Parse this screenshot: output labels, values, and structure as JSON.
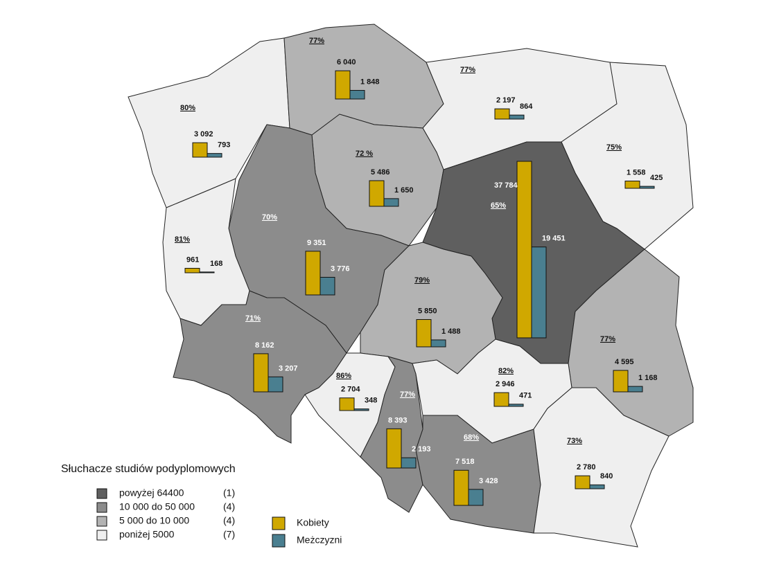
{
  "map_data": {
    "legend_title": "Słuchacze studiów podyplomowych",
    "classes": [
      {
        "label": "powyżej  64400",
        "count": "(1)",
        "color": "#5f5f5f"
      },
      {
        "label": "10 000 do 50 000",
        "count": "(4)",
        "color": "#8c8c8c"
      },
      {
        "label": "  5 000 do 10 000",
        "count": "(4)",
        "color": "#b3b3b3"
      },
      {
        "label": "poniżej 5000",
        "count": "(7)",
        "color": "#efefef"
      }
    ],
    "series": [
      {
        "name": "Kobiety",
        "color": "#d0a800"
      },
      {
        "name": "Meżczyzni",
        "color": "#4a7f90"
      }
    ],
    "regions": [
      {
        "share": "80%",
        "class": 3,
        "values": [
          {
            "value": 3092,
            "label": "3 092"
          },
          {
            "value": 793,
            "label": "793"
          }
        ]
      },
      {
        "share": "77%",
        "class": 2,
        "values": [
          {
            "value": 6040,
            "label": "6 040"
          },
          {
            "value": 1848,
            "label": "1 848"
          }
        ]
      },
      {
        "share": "77%",
        "class": 3,
        "values": [
          {
            "value": 2197,
            "label": "2 197"
          },
          {
            "value": 864,
            "label": "864"
          }
        ]
      },
      {
        "share": "75%",
        "class": 3,
        "values": [
          {
            "value": 1558,
            "label": "1 558"
          },
          {
            "value": 425,
            "label": "425"
          }
        ]
      },
      {
        "share": "72 %",
        "class": 2,
        "values": [
          {
            "value": 5486,
            "label": "5 486"
          },
          {
            "value": 1650,
            "label": "1 650"
          }
        ]
      },
      {
        "share": "70%",
        "class": 1,
        "values": [
          {
            "value": 9351,
            "label": "9 351"
          },
          {
            "value": 3776,
            "label": "3 776"
          }
        ]
      },
      {
        "share": "81%",
        "class": 3,
        "values": [
          {
            "value": 961,
            "label": "961"
          },
          {
            "value": 168,
            "label": "168"
          }
        ]
      },
      {
        "share": "65%",
        "class": 0,
        "values": [
          {
            "value": 37784,
            "label": "37 784"
          },
          {
            "value": 19451,
            "label": "19 451"
          }
        ]
      },
      {
        "share": "79%",
        "class": 2,
        "values": [
          {
            "value": 5850,
            "label": "5 850"
          },
          {
            "value": 1488,
            "label": "1 488"
          }
        ]
      },
      {
        "share": "71%",
        "class": 1,
        "values": [
          {
            "value": 8162,
            "label": "8 162"
          },
          {
            "value": 3207,
            "label": "3 207"
          }
        ]
      },
      {
        "share": "77%",
        "class": 2,
        "values": [
          {
            "value": 4595,
            "label": "4 595"
          },
          {
            "value": 1168,
            "label": "1 168"
          }
        ]
      },
      {
        "share": "86%",
        "class": 3,
        "values": [
          {
            "value": 2704,
            "label": "2 704"
          },
          {
            "value": 348,
            "label": "348"
          }
        ]
      },
      {
        "share": "77%",
        "class": 1,
        "values": [
          {
            "value": 8393,
            "label": "8 393"
          },
          {
            "value": 2193,
            "label": "2 193"
          }
        ]
      },
      {
        "share": "82%",
        "class": 3,
        "values": [
          {
            "value": 2946,
            "label": "2 946"
          },
          {
            "value": 471,
            "label": "471"
          }
        ]
      },
      {
        "share": "68%",
        "class": 1,
        "values": [
          {
            "value": 7518,
            "label": "7 518"
          },
          {
            "value": 3428,
            "label": "3 428"
          }
        ]
      },
      {
        "share": "73%",
        "class": 3,
        "values": [
          {
            "value": 2780,
            "label": "2 780"
          },
          {
            "value": 840,
            "label": "840"
          }
        ]
      }
    ]
  }
}
